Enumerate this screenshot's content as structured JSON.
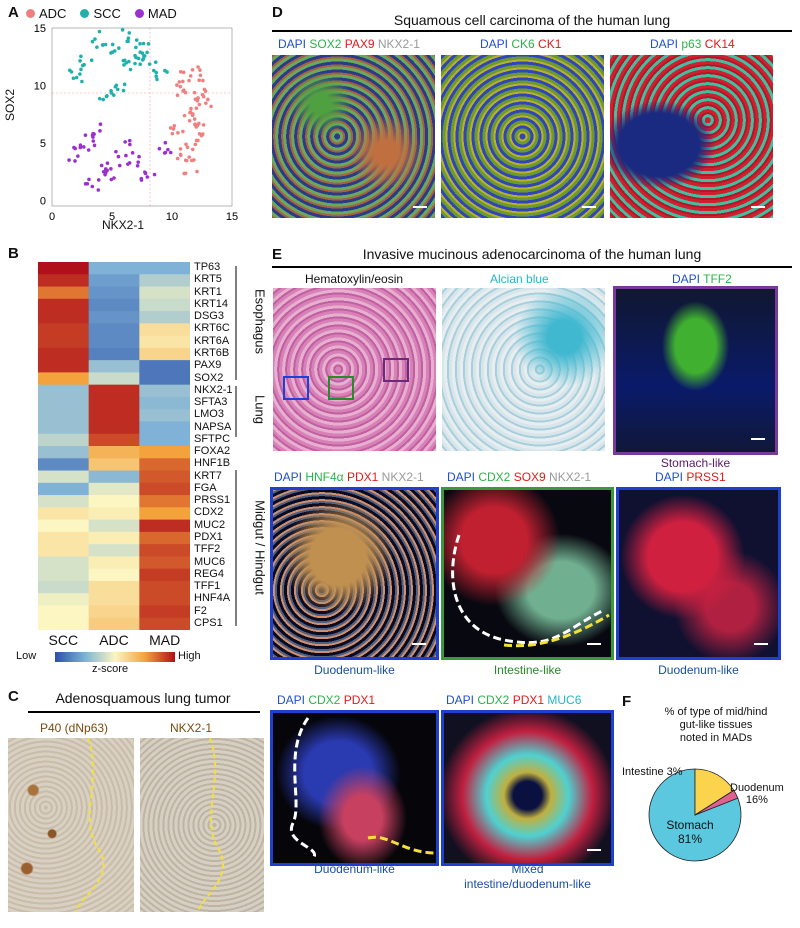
{
  "panels": {
    "A": "A",
    "B": "B",
    "C": "C",
    "D": "D",
    "E": "E",
    "F": "F"
  },
  "scatter": {
    "legend": [
      {
        "label": "ADC",
        "color": "#f08080"
      },
      {
        "label": "SCC",
        "color": "#20b2aa"
      },
      {
        "label": "MAD",
        "color": "#9b30d0"
      }
    ],
    "xlabel": "NKX2-1",
    "ylabel": "SOX2",
    "xticks": [
      "0",
      "5",
      "10",
      "15"
    ],
    "yticks": [
      "0",
      "5",
      "10",
      "15"
    ]
  },
  "chart_data": [
    {
      "type": "scatter",
      "xlabel": "NKX2-1",
      "ylabel": "SOX2",
      "xlim": [
        0,
        15
      ],
      "ylim": [
        -0.5,
        15
      ],
      "series": [
        {
          "name": "ADC",
          "color": "#f08080",
          "x": [
            11.0,
            11.5,
            12.0,
            12.5,
            11.8,
            10.8,
            12.2,
            11.3,
            12.7,
            11.6,
            10.5,
            12.4
          ],
          "y": [
            9.5,
            8.0,
            7.0,
            6.0,
            5.0,
            4.0,
            9.0,
            10.5,
            8.5,
            3.0,
            6.5,
            11.0
          ]
        },
        {
          "name": "SCC",
          "color": "#20b2aa",
          "x": [
            3,
            5,
            6,
            7,
            4,
            8,
            5.5,
            6.5,
            2,
            7.5,
            9,
            4.5
          ],
          "y": [
            12,
            13,
            11.5,
            12.5,
            14,
            12,
            10,
            14.5,
            11,
            13,
            11,
            9
          ]
        },
        {
          "name": "MAD",
          "color": "#9b30d0",
          "x": [
            2,
            3,
            4.5,
            5,
            6,
            7,
            4,
            8,
            9.5,
            3.5
          ],
          "y": [
            4,
            5,
            3,
            2.5,
            4.5,
            3.5,
            6,
            2,
            4.5,
            1.5
          ]
        }
      ]
    },
    {
      "type": "heatmap",
      "columns": [
        "SCC",
        "ADC",
        "MAD"
      ],
      "rows": [
        "TP63",
        "KRT5",
        "KRT1",
        "KRT14",
        "DSG3",
        "KRT6C",
        "KRT6A",
        "KRT6B",
        "PAX9",
        "SOX2",
        "NKX2-1",
        "SFTA3",
        "LMO3",
        "NAPSA",
        "SFTPC",
        "FOXA2",
        "HNF1B",
        "KRT7",
        "FGA",
        "PRSS1",
        "CDX2",
        "MUC2",
        "PDX1",
        "TFF2",
        "MUC6",
        "REG4",
        "TFF1",
        "HNF4A",
        "F2",
        "CPS1"
      ],
      "values": [
        [
          2.0,
          -1.0,
          -1.0
        ],
        [
          1.8,
          -1.2,
          -0.6
        ],
        [
          1.3,
          -1.3,
          -0.3
        ],
        [
          1.8,
          -1.4,
          -0.4
        ],
        [
          1.8,
          -1.3,
          -0.6
        ],
        [
          1.7,
          -1.4,
          0.3
        ],
        [
          1.7,
          -1.4,
          0.2
        ],
        [
          1.8,
          -1.5,
          0.4
        ],
        [
          1.8,
          -0.8,
          -1.6
        ],
        [
          1.0,
          -0.4,
          -1.6
        ],
        [
          -0.8,
          1.8,
          -0.8
        ],
        [
          -0.8,
          1.8,
          -0.9
        ],
        [
          -0.8,
          1.8,
          -0.8
        ],
        [
          -0.8,
          1.8,
          -1.0
        ],
        [
          -0.5,
          1.6,
          -1.0
        ],
        [
          -0.8,
          0.8,
          1.0
        ],
        [
          -1.4,
          0.6,
          1.4
        ],
        [
          -0.3,
          -0.9,
          1.5
        ],
        [
          -1.0,
          -0.2,
          1.6
        ],
        [
          -0.3,
          0.0,
          1.3
        ],
        [
          0.2,
          0.1,
          1.0
        ],
        [
          0.0,
          -0.3,
          1.8
        ],
        [
          0.2,
          0.1,
          1.4
        ],
        [
          0.2,
          -0.3,
          1.6
        ],
        [
          -0.3,
          0.1,
          1.5
        ],
        [
          -0.3,
          0.0,
          1.7
        ],
        [
          -0.4,
          0.3,
          1.6
        ],
        [
          -0.1,
          0.3,
          1.6
        ],
        [
          0.0,
          0.4,
          1.7
        ],
        [
          0.0,
          0.5,
          1.6
        ]
      ],
      "colorbar": {
        "low": "Low",
        "high": "High",
        "label": "z-score"
      }
    },
    {
      "type": "pie",
      "title": "% of type of mid/hind gut-like tissues noted in MADs",
      "labels": [
        "Stomach",
        "Duodenum",
        "Intestine"
      ],
      "values": [
        81,
        16,
        3
      ],
      "colors": [
        "#5bc8e0",
        "#fcd34d",
        "#e06090"
      ]
    }
  ],
  "heatmap_groups": [
    "Esophagus",
    "Lung",
    "Midgut / Hindgut"
  ],
  "colorbar": {
    "low": "Low",
    "high": "High",
    "label": "z-score"
  },
  "D": {
    "title": "Squamous cell carcinoma of the human lung",
    "img1": [
      {
        "t": "DAPI",
        "c": "#1f4fd0"
      },
      {
        "t": " SOX2",
        "c": "#2bb34a"
      },
      {
        "t": " PAX9",
        "c": "#e01b1b"
      },
      {
        "t": " NKX2-1",
        "c": "#999999"
      }
    ],
    "img2": [
      {
        "t": "DAPI",
        "c": "#1f4fd0"
      },
      {
        "t": " CK6",
        "c": "#2bb34a"
      },
      {
        "t": " CK1",
        "c": "#e01b1b"
      }
    ],
    "img3": [
      {
        "t": "DAPI",
        "c": "#1f4fd0"
      },
      {
        "t": " p63",
        "c": "#2bb34a"
      },
      {
        "t": " CK14",
        "c": "#e01b1b"
      }
    ]
  },
  "E": {
    "title": "Invasive mucinous adenocarcinoma of the human lung",
    "he": "Hematoxylin/eosin",
    "alcian": "Alcian blue",
    "tff2": [
      {
        "t": "DAPI",
        "c": "#1f4fd0"
      },
      {
        "t": " TFF2",
        "c": "#2bb34a"
      }
    ],
    "stomach": "Stomach-like",
    "row2_1": [
      {
        "t": "DAPI",
        "c": "#1f4fd0"
      },
      {
        "t": " HNF4α",
        "c": "#2bb34a"
      },
      {
        "t": " PDX1",
        "c": "#e01b1b"
      },
      {
        "t": " NKX2-1",
        "c": "#999999"
      }
    ],
    "row2_2": [
      {
        "t": "DAPI",
        "c": "#1f4fd0"
      },
      {
        "t": " CDX2",
        "c": "#2bb34a"
      },
      {
        "t": " SOX9",
        "c": "#e01b1b"
      },
      {
        "t": " NKX2-1",
        "c": "#999999"
      }
    ],
    "row2_3": [
      {
        "t": "DAPI",
        "c": "#1f4fd0"
      },
      {
        "t": " PRSS1",
        "c": "#e01b1b"
      }
    ],
    "cap_duo1": "Duodenum-like",
    "cap_int": "Intestine-like",
    "cap_duo2": "Duodenum-like",
    "row3_1": [
      {
        "t": "DAPI",
        "c": "#1f4fd0"
      },
      {
        "t": " CDX2",
        "c": "#2bb34a"
      },
      {
        "t": " PDX1",
        "c": "#e01b1b"
      }
    ],
    "row3_2": [
      {
        "t": "DAPI",
        "c": "#1f4fd0"
      },
      {
        "t": " CDX2",
        "c": "#2bb34a"
      },
      {
        "t": " PDX1",
        "c": "#e01b1b"
      },
      {
        "t": " MUC6",
        "c": "#20b8c8"
      }
    ],
    "cap_duo3": "Duodenum-like",
    "cap_mixed1": "Mixed",
    "cap_mixed2": "intestine/duodenum-like"
  },
  "C": {
    "title": "Adenosquamous lung tumor",
    "left": "P40 (dNp63)",
    "right": "NKX2-1"
  },
  "F": {
    "title1": "% of type of mid/hind",
    "title2": "gut-like tissues",
    "title3": "noted in MADs",
    "intestine": "Intestine 3%",
    "duodenum1": "Duodenum",
    "duodenum2": "16%",
    "stomach1": "Stomach",
    "stomach2": "81%"
  }
}
